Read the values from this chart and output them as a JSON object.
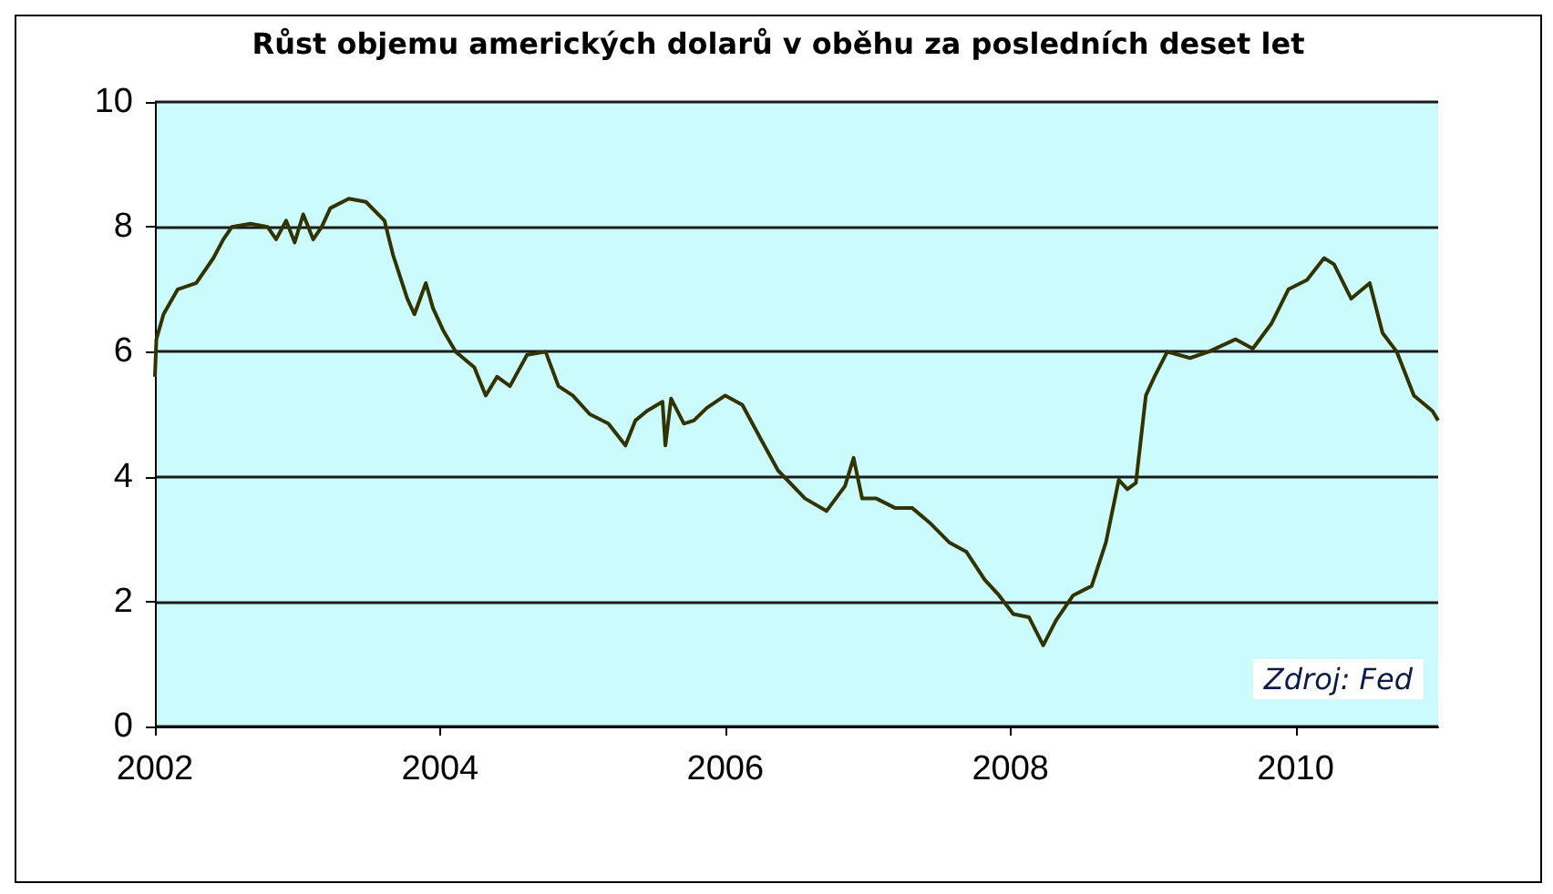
{
  "chart_data": {
    "type": "line",
    "title": "Růst objemu amerických dolarů v oběhu za posledních deset let",
    "annotations": [
      "Zdroj: Fed"
    ],
    "x": [
      2002.0,
      2002.01,
      2002.06,
      2002.16,
      2002.29,
      2002.41,
      2002.48,
      2002.54,
      2002.67,
      2002.79,
      2002.85,
      2002.92,
      2002.98,
      2003.04,
      2003.11,
      2003.17,
      2003.23,
      2003.36,
      2003.48,
      2003.61,
      2003.67,
      2003.77,
      2003.82,
      2003.9,
      2003.95,
      2004.02,
      2004.11,
      2004.24,
      2004.32,
      2004.4,
      2004.49,
      2004.61,
      2004.74,
      2004.83,
      2004.93,
      2005.05,
      2005.18,
      2005.3,
      2005.37,
      2005.45,
      2005.56,
      2005.58,
      2005.62,
      2005.71,
      2005.78,
      2005.87,
      2006.0,
      2006.12,
      2006.25,
      2006.37,
      2006.56,
      2006.71,
      2006.84,
      2006.9,
      2006.96,
      2007.06,
      2007.19,
      2007.31,
      2007.44,
      2007.57,
      2007.69,
      2007.82,
      2007.92,
      2008.02,
      2008.13,
      2008.23,
      2008.32,
      2008.44,
      2008.57,
      2008.67,
      2008.76,
      2008.82,
      2008.88,
      2008.95,
      2009.01,
      2009.1,
      2009.26,
      2009.39,
      2009.58,
      2009.7,
      2009.83,
      2009.95,
      2010.08,
      2010.2,
      2010.27,
      2010.39,
      2010.52,
      2010.61,
      2010.71,
      2010.83,
      2010.96,
      2011.0
    ],
    "series": [
      {
        "color": "#333300",
        "values": [
          5.6,
          6.2,
          6.6,
          7.0,
          7.1,
          7.5,
          7.8,
          8.0,
          8.05,
          8.0,
          7.8,
          8.1,
          7.75,
          8.2,
          7.8,
          8.0,
          8.3,
          8.45,
          8.4,
          8.1,
          7.55,
          6.85,
          6.6,
          7.1,
          6.7,
          6.35,
          6.0,
          5.75,
          5.3,
          5.6,
          5.45,
          5.95,
          6.0,
          5.45,
          5.3,
          5.0,
          4.85,
          4.5,
          4.9,
          5.05,
          5.2,
          4.5,
          5.25,
          4.85,
          4.9,
          5.1,
          5.3,
          5.15,
          4.6,
          4.1,
          3.65,
          3.45,
          3.85,
          4.3,
          3.65,
          3.65,
          3.5,
          3.5,
          3.25,
          2.95,
          2.8,
          2.35,
          2.1,
          1.8,
          1.75,
          1.3,
          1.7,
          2.1,
          2.25,
          2.95,
          3.95,
          3.8,
          3.9,
          5.3,
          5.6,
          6.0,
          5.9,
          6.0,
          6.2,
          6.05,
          6.45,
          7.0,
          7.15,
          7.5,
          7.4,
          6.85,
          7.1,
          6.3,
          6.0,
          5.3,
          5.05,
          4.9
        ]
      }
    ],
    "xlim": [
      2002,
      2011
    ],
    "xticks": [
      2002,
      2004,
      2006,
      2008,
      2010
    ],
    "ylim": [
      0,
      10
    ],
    "yticks": [
      0,
      2,
      4,
      6,
      8,
      10
    ],
    "grid": "y",
    "line_style": "solid",
    "marker": "none"
  }
}
